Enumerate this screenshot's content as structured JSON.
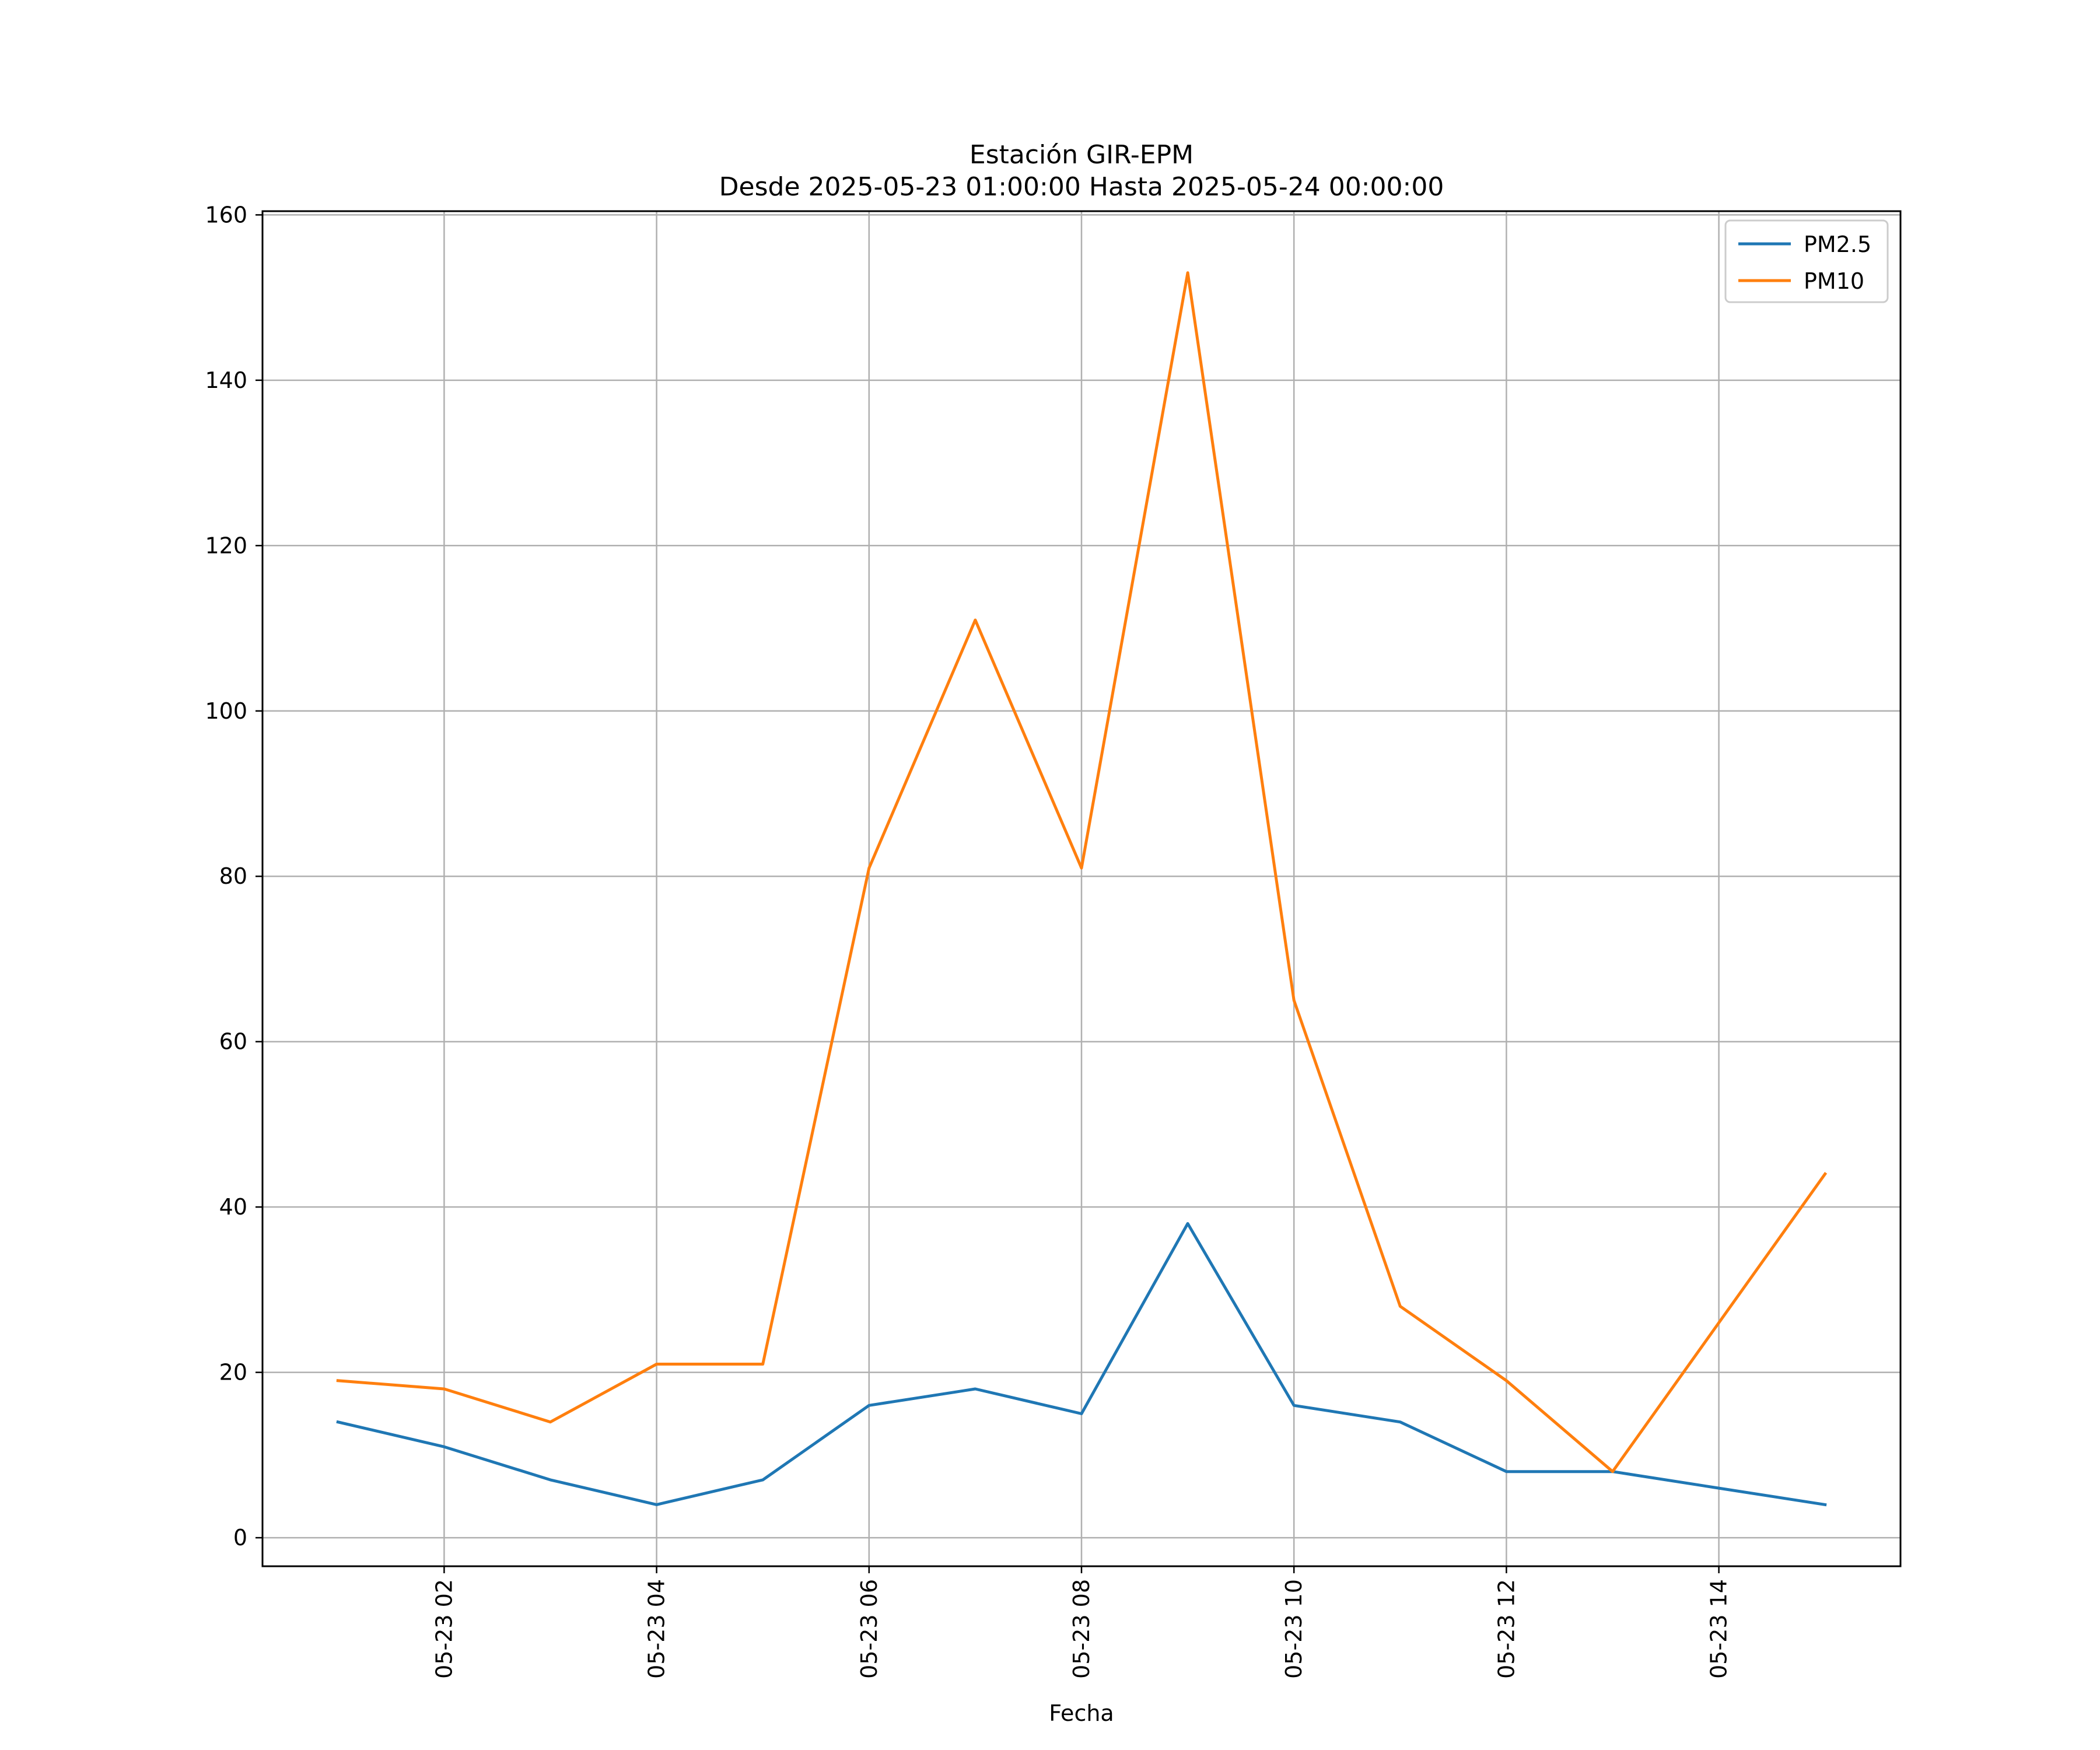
{
  "chart_data": {
    "type": "line",
    "title": "Estación GIR-EPM",
    "subtitle": "Desde 2025-05-23 01:00:00 Hasta 2025-05-24 00:00:00",
    "xlabel": "Fecha",
    "ylabel": "",
    "x": [
      "05-23 01",
      "05-23 02",
      "05-23 03",
      "05-23 04",
      "05-23 05",
      "05-23 06",
      "05-23 07",
      "05-23 08",
      "05-23 09",
      "05-23 10",
      "05-23 11",
      "05-23 12",
      "05-23 13",
      "05-23 14",
      "05-23 15"
    ],
    "x_hours": [
      1,
      2,
      3,
      4,
      5,
      6,
      7,
      8,
      9,
      10,
      11,
      12,
      13,
      14,
      15
    ],
    "xlim": [
      0.29,
      15.71
    ],
    "xticks": [
      2,
      4,
      6,
      8,
      10,
      12,
      14
    ],
    "xtick_labels": [
      "05-23 02",
      "05-23 04",
      "05-23 06",
      "05-23 08",
      "05-23 10",
      "05-23 12",
      "05-23 14"
    ],
    "ylim": [
      -3.45,
      160.45
    ],
    "yticks": [
      0,
      20,
      40,
      60,
      80,
      100,
      120,
      140,
      160
    ],
    "ytick_labels": [
      "0",
      "20",
      "40",
      "60",
      "80",
      "100",
      "120",
      "140",
      "160"
    ],
    "grid": true,
    "legend_position": "top-right",
    "series": [
      {
        "name": "PM2.5",
        "color": "#1f77b4",
        "values": [
          14,
          11,
          7,
          4,
          7,
          16,
          18,
          15,
          38,
          16,
          14,
          8,
          8,
          6,
          4
        ]
      },
      {
        "name": "PM10",
        "color": "#ff7f0e",
        "values": [
          19,
          18,
          14,
          21,
          21,
          81,
          111,
          81,
          153,
          65,
          28,
          19,
          8,
          26,
          44
        ]
      }
    ]
  }
}
